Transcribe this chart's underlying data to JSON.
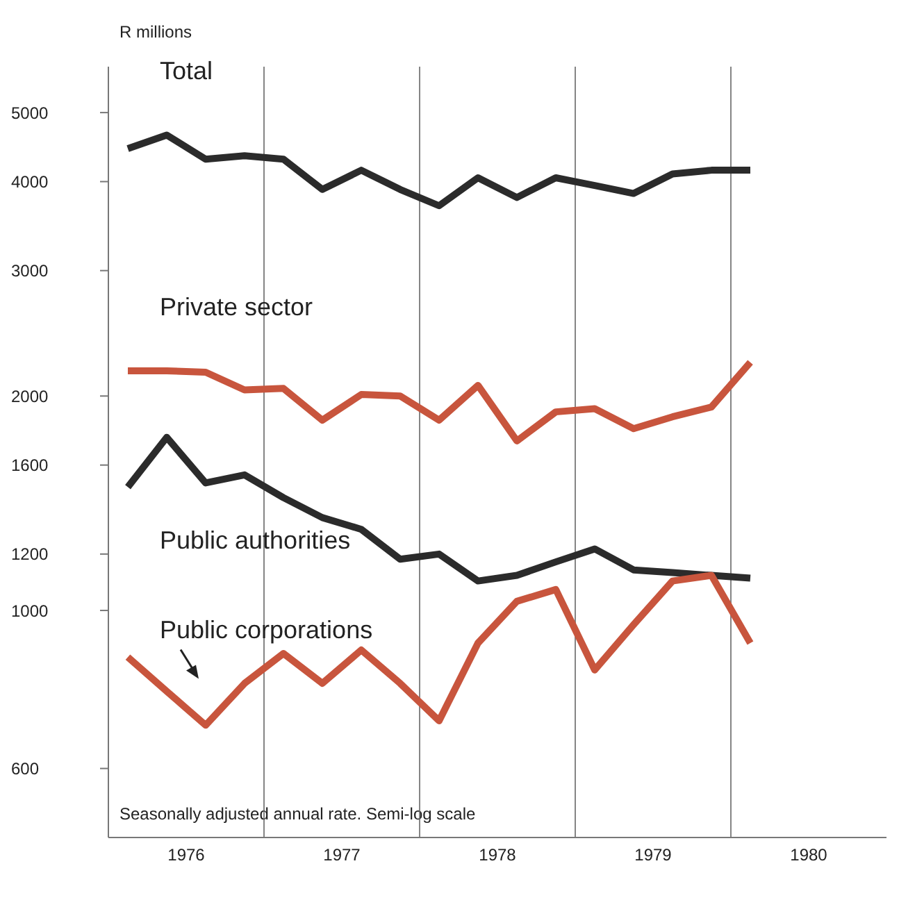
{
  "chart_data": {
    "type": "line",
    "ylabel": "R millions",
    "annotations": [
      "Seasonally adjusted annual rate. Semi-log scale"
    ],
    "x": [
      1976.125,
      1976.375,
      1976.625,
      1976.875,
      1977.125,
      1977.375,
      1977.625,
      1977.875,
      1978.125,
      1978.375,
      1978.625,
      1978.875,
      1979.125,
      1979.375,
      1979.625,
      1979.875,
      1980.125
    ],
    "series": [
      {
        "name": "Total",
        "color": "#2b2b2b",
        "values": [
          4450,
          4650,
          4300,
          4350,
          4300,
          3900,
          4150,
          3900,
          3700,
          4050,
          3800,
          4050,
          3950,
          3850,
          4100,
          4150,
          4150
        ]
      },
      {
        "name": "Private sector",
        "color": "#c8553d",
        "values": [
          2170,
          2170,
          2160,
          2040,
          2050,
          1850,
          2010,
          2000,
          1850,
          2070,
          1730,
          1900,
          1920,
          1800,
          1870,
          1930,
          2230
        ]
      },
      {
        "name": "Public authorities",
        "color": "#2b2b2b",
        "values": [
          1490,
          1750,
          1510,
          1550,
          1440,
          1350,
          1300,
          1180,
          1200,
          1100,
          1120,
          1170,
          1220,
          1140,
          1130,
          1120,
          1110
        ]
      },
      {
        "name": "Public corporations",
        "color": "#c8553d",
        "values": [
          860,
          770,
          690,
          790,
          870,
          790,
          880,
          790,
          700,
          900,
          1030,
          1070,
          825,
          955,
          1100,
          1120,
          900
        ]
      }
    ],
    "log": "y",
    "ylim": [
      480,
      5800
    ],
    "yticks": [
      600,
      1000,
      1200,
      1600,
      2000,
      3000,
      4000,
      5000
    ],
    "xlim": [
      1976,
      1981
    ],
    "xticks": [
      {
        "value": 1976.5,
        "label": "1976"
      },
      {
        "value": 1977,
        "label": null
      },
      {
        "value": 1977.5,
        "label": "1977"
      },
      {
        "value": 1978,
        "label": null
      },
      {
        "value": 1978.5,
        "label": "1978"
      },
      {
        "value": 1979,
        "label": null
      },
      {
        "value": 1979.5,
        "label": "1979"
      },
      {
        "value": 1980,
        "label": null
      },
      {
        "value": 1980.5,
        "label": "1980"
      }
    ],
    "grid": "x",
    "legend": false,
    "marker": "none",
    "line_style": "solid"
  }
}
